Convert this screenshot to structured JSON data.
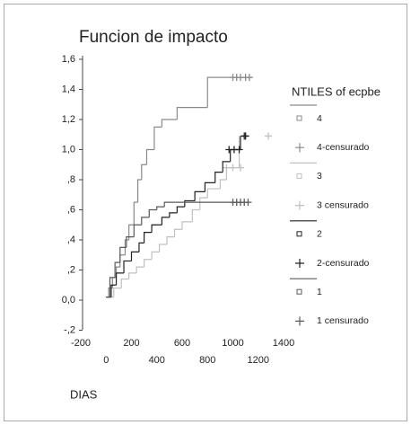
{
  "chart_data": {
    "type": "step",
    "title": "Funcion de impacto",
    "x_label": "DIAS",
    "legend_title": "NTILES of ecpbe",
    "legend": "right",
    "xlim": [
      -200,
      1400
    ],
    "xticks": [
      -200,
      0,
      200,
      400,
      600,
      800,
      1000,
      1200,
      1400
    ],
    "ylim": [
      -0.2,
      1.6
    ],
    "yticks": [
      {
        "value": -0.2,
        "label": "-,2"
      },
      {
        "value": 0,
        "label": "0,0"
      },
      {
        "value": 0.2,
        "label": ",2"
      },
      {
        "value": 0.4,
        "label": ",4"
      },
      {
        "value": 0.6,
        "label": ",6"
      },
      {
        "value": 0.8,
        "label": ",8"
      },
      {
        "value": 1.0,
        "label": "1,0"
      },
      {
        "value": 1.2,
        "label": "1,2"
      },
      {
        "value": 1.4,
        "label": "1,4"
      },
      {
        "value": 1.6,
        "label": "1,6"
      }
    ],
    "series": [
      {
        "name": "4",
        "style": "step",
        "color": "#8a8a8a",
        "x": [
          0,
          20,
          50,
          80,
          110,
          150,
          180,
          220,
          250,
          280,
          320,
          380,
          440,
          560,
          800,
          1150
        ],
        "values": [
          0.02,
          0.08,
          0.15,
          0.22,
          0.3,
          0.4,
          0.5,
          0.65,
          0.8,
          0.9,
          1.0,
          1.15,
          1.2,
          1.28,
          1.48,
          1.48
        ]
      },
      {
        "name": "4-censurado",
        "style": "censored",
        "color": "#8a8a8a",
        "x": [
          1000,
          1030,
          1060,
          1100,
          1130
        ],
        "values": [
          1.48,
          1.48,
          1.48,
          1.48,
          1.48
        ]
      },
      {
        "name": "3",
        "style": "step",
        "color": "#c0c0c0",
        "x": [
          0,
          60,
          120,
          180,
          240,
          300,
          360,
          420,
          480,
          540,
          600,
          680,
          740,
          800,
          900,
          950,
          1000,
          1050
        ],
        "values": [
          0.02,
          0.08,
          0.14,
          0.18,
          0.22,
          0.27,
          0.32,
          0.37,
          0.42,
          0.47,
          0.52,
          0.6,
          0.68,
          0.74,
          0.8,
          0.88,
          0.88,
          1.09
        ]
      },
      {
        "name": "3 censurado",
        "style": "censored",
        "color": "#c0c0c0",
        "x": [
          950,
          1000,
          1060,
          1280
        ],
        "values": [
          0.88,
          0.88,
          0.88,
          1.09
        ]
      },
      {
        "name": "2",
        "style": "step",
        "color": "#222222",
        "x": [
          0,
          40,
          80,
          140,
          200,
          260,
          300,
          360,
          440,
          500,
          560,
          620,
          700,
          780,
          860,
          920,
          980,
          1020,
          1060
        ],
        "values": [
          0.02,
          0.1,
          0.18,
          0.26,
          0.32,
          0.38,
          0.45,
          0.5,
          0.55,
          0.58,
          0.62,
          0.66,
          0.72,
          0.78,
          0.85,
          0.92,
          1.0,
          1.0,
          1.09
        ]
      },
      {
        "name": "2-censurado",
        "style": "censored",
        "color": "#222222",
        "x": [
          970,
          1010,
          1050,
          1090,
          1100
        ],
        "values": [
          1.0,
          1.0,
          1.0,
          1.09,
          1.09
        ]
      },
      {
        "name": "1",
        "style": "step",
        "color": "#5a5a5a",
        "x": [
          0,
          30,
          70,
          110,
          160,
          220,
          280,
          340,
          400,
          460,
          600,
          1120
        ],
        "values": [
          0.02,
          0.15,
          0.25,
          0.35,
          0.42,
          0.5,
          0.55,
          0.6,
          0.62,
          0.65,
          0.65,
          0.65
        ]
      },
      {
        "name": "1 censurado",
        "style": "censored",
        "color": "#5a5a5a",
        "x": [
          1000,
          1030,
          1060,
          1090,
          1120
        ],
        "values": [
          0.65,
          0.65,
          0.65,
          0.65,
          0.65
        ]
      }
    ]
  }
}
